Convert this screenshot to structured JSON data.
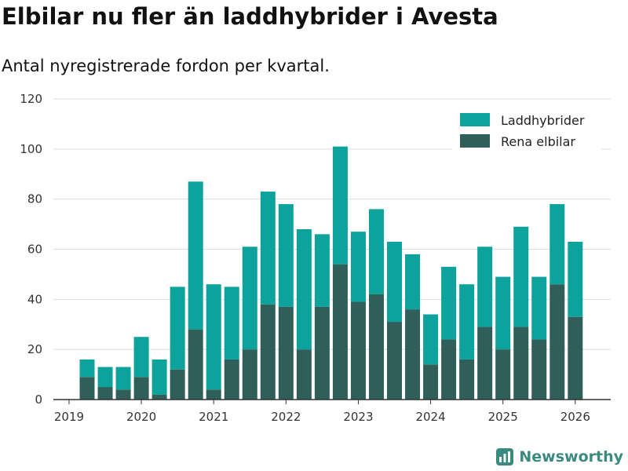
{
  "header": {
    "title": "Elbilar nu fler än laddhybrider i Avesta",
    "subtitle": "Antal nyregistrerade fordon per kvartal."
  },
  "brand": {
    "name": "Newsworthy",
    "logo_icon": "newsworthy-logo-icon"
  },
  "colors": {
    "phev": "#0da29b",
    "bev": "#2f5f58",
    "grid": "#dddddd",
    "axis": "#333333"
  },
  "chart_data": {
    "type": "bar",
    "stacked": true,
    "title": "Elbilar nu fler än laddhybrider i Avesta",
    "subtitle": "Antal nyregistrerade fordon per kvartal.",
    "xlabel": "",
    "ylabel": "",
    "ylim": [
      0,
      120
    ],
    "yticks": [
      0,
      20,
      40,
      60,
      80,
      100,
      120
    ],
    "xticks": [
      "2019",
      "2020",
      "2021",
      "2022",
      "2023",
      "2024",
      "2025",
      "2026"
    ],
    "legend_position": "top-right",
    "categories": [
      "2019 Q2",
      "2019 Q3",
      "2019 Q4",
      "2020 Q1",
      "2020 Q2",
      "2020 Q3",
      "2020 Q4",
      "2021 Q1",
      "2021 Q2",
      "2021 Q3",
      "2021 Q4",
      "2022 Q1",
      "2022 Q2",
      "2022 Q3",
      "2022 Q4",
      "2023 Q1",
      "2023 Q2",
      "2023 Q3",
      "2023 Q4",
      "2024 Q1",
      "2024 Q2",
      "2024 Q3",
      "2024 Q4",
      "2025 Q1",
      "2025 Q2",
      "2025 Q3",
      "2025 Q4",
      "2026 Q1"
    ],
    "series": [
      {
        "name": "Rena elbilar",
        "values": [
          9,
          5,
          4,
          9,
          2,
          12,
          28,
          4,
          16,
          20,
          38,
          37,
          20,
          37,
          54,
          39,
          42,
          31,
          36,
          14,
          24,
          16,
          29,
          20,
          29,
          24,
          46,
          33
        ]
      },
      {
        "name": "Laddhybrider",
        "values": [
          7,
          8,
          9,
          16,
          14,
          33,
          59,
          42,
          29,
          41,
          45,
          41,
          48,
          29,
          47,
          28,
          34,
          32,
          22,
          20,
          29,
          30,
          32,
          29,
          40,
          25,
          32,
          30
        ]
      }
    ]
  }
}
